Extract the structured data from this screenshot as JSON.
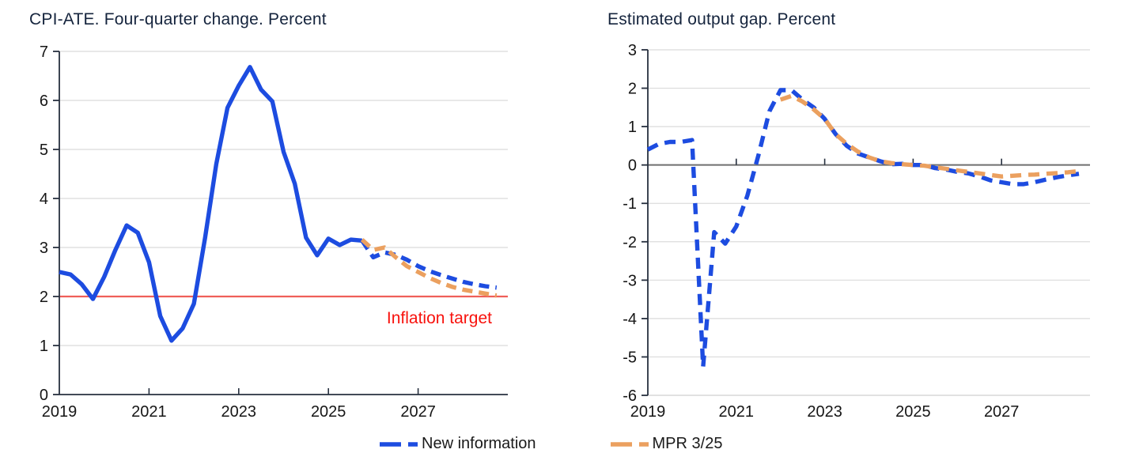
{
  "page": {
    "background": "#ffffff"
  },
  "colors": {
    "blue_line": "#1d4ce0",
    "orange_line": "#eba05f",
    "red_target_line": "#ef5f59",
    "red_label": "#f8120d",
    "title_navy": "#15243d",
    "axis_dark": "#27303f",
    "zero_line_gray": "#6f6f6f",
    "grid_gray": "#dbdbdb"
  },
  "legend": {
    "items": [
      {
        "key": "new-information",
        "label": "New information",
        "color": "#1d4ce0"
      },
      {
        "key": "mpr-3-25",
        "label": "MPR 3/25",
        "color": "#eba05f"
      }
    ]
  },
  "chart_data": [
    {
      "id": "cpi",
      "type": "line",
      "title": "CPI-ATE. Four-quarter change. Percent",
      "x_range": [
        2019,
        2029
      ],
      "y_range": [
        0,
        7
      ],
      "y_gridlines": [
        1,
        2,
        3,
        4,
        5,
        6,
        7
      ],
      "y_tick_values": [
        0,
        1,
        2,
        3,
        4,
        5,
        6,
        7
      ],
      "y_tick_labels": [
        "0",
        "1",
        "2",
        "3",
        "4",
        "5",
        "6",
        "7"
      ],
      "x_tick_values": [
        2021,
        2023,
        2025,
        2027
      ],
      "x_label_values": [
        2019,
        2021,
        2023,
        2025,
        2027
      ],
      "x_label_texts": [
        "2019",
        "2021",
        "2023",
        "2025",
        "2027"
      ],
      "grid_on": true,
      "axis_color": "#27303f",
      "grid_color": "#dbdbdb",
      "baseline": {
        "value": 0,
        "color": "#27303f",
        "width": 1.8
      },
      "reference_line": {
        "value": 2,
        "color": "#ef5f59",
        "width": 2.3
      },
      "annotation": {
        "text": "Inflation target",
        "color": "#f8120d",
        "x": 2026.3,
        "y": 1.45
      },
      "series": [
        {
          "key": "new-information-actual",
          "name": "New information (actual)",
          "color": "#1d4ce0",
          "width": 5.4,
          "dash": "",
          "x_start": 2019.0,
          "x_step": 0.25,
          "values": [
            2.5,
            2.45,
            2.25,
            1.95,
            2.4,
            2.95,
            3.45,
            3.3,
            2.7,
            1.6,
            1.1,
            1.35,
            1.85,
            3.2,
            4.7,
            5.85,
            6.3,
            6.68,
            6.22,
            5.98,
            4.95,
            4.3,
            3.2,
            2.84,
            3.18,
            3.05,
            3.16,
            3.14
          ]
        },
        {
          "key": "new-information-forecast",
          "name": "New information (forecast)",
          "color": "#1d4ce0",
          "width": 5.4,
          "dash": "13 8",
          "x_start": 2025.75,
          "x_step": 0.25,
          "values": [
            3.14,
            2.8,
            2.9,
            2.85,
            2.75,
            2.62,
            2.52,
            2.44,
            2.37,
            2.3,
            2.25,
            2.21,
            2.18
          ]
        },
        {
          "key": "mpr-3-25",
          "name": "MPR 3/25",
          "color": "#eba05f",
          "width": 5.4,
          "dash": "13 8",
          "x_start": 2025.75,
          "x_step": 0.25,
          "values": [
            3.16,
            2.95,
            3.0,
            2.8,
            2.62,
            2.5,
            2.38,
            2.28,
            2.2,
            2.14,
            2.1,
            2.06,
            2.02
          ]
        }
      ]
    },
    {
      "id": "output-gap",
      "type": "line",
      "title": "Estimated output gap. Percent",
      "x_range": [
        2019,
        2029
      ],
      "y_range": [
        -6,
        3
      ],
      "y_gridlines": [
        -5,
        -4,
        -3,
        -2,
        -1,
        1,
        2,
        3
      ],
      "y_tick_values": [
        -6,
        -5,
        -4,
        -3,
        -2,
        -1,
        0,
        1,
        2,
        3
      ],
      "y_tick_labels": [
        "-6",
        "-5",
        "-4",
        "-3",
        "-2",
        "-1",
        "0",
        "1",
        "2",
        "3"
      ],
      "x_tick_values": [
        2021,
        2023,
        2025,
        2027
      ],
      "x_label_values": [
        2019,
        2021,
        2023,
        2025,
        2027
      ],
      "x_label_texts": [
        "2019",
        "2021",
        "2023",
        "2025",
        "2027"
      ],
      "grid_on": true,
      "axis_color": "#27303f",
      "grid_color": "#dbdbdb",
      "bottom_line": {
        "value": -6,
        "color": "#cfcfcf",
        "width": 1.3
      },
      "baseline": {
        "value": 0,
        "color": "#6f6f6f",
        "width": 2
      },
      "series": [
        {
          "key": "new-information",
          "name": "New information",
          "color": "#1d4ce0",
          "width": 5.4,
          "dash": "14 9",
          "x_start": 2019.0,
          "x_step": 0.25,
          "values": [
            0.4,
            0.55,
            0.6,
            0.6,
            0.65,
            -5.25,
            -1.75,
            -2.05,
            -1.6,
            -0.8,
            0.25,
            1.4,
            1.95,
            1.95,
            1.7,
            1.5,
            1.2,
            0.8,
            0.5,
            0.3,
            0.2,
            0.1,
            0.02,
            0.03,
            0.0,
            0.0,
            -0.08,
            -0.12,
            -0.18,
            -0.22,
            -0.3,
            -0.4,
            -0.45,
            -0.5,
            -0.5,
            -0.45,
            -0.38,
            -0.32,
            -0.27,
            -0.23
          ]
        },
        {
          "key": "mpr-3-25",
          "name": "MPR 3/25",
          "color": "#eba05f",
          "width": 5.4,
          "dash": "14 9",
          "x_start": 2022.0,
          "x_step": 0.25,
          "values": [
            1.7,
            1.8,
            1.65,
            1.45,
            1.2,
            0.8,
            0.55,
            0.35,
            0.2,
            0.1,
            0.05,
            0.02,
            0.0,
            -0.02,
            -0.06,
            -0.1,
            -0.14,
            -0.18,
            -0.22,
            -0.26,
            -0.3,
            -0.28,
            -0.26,
            -0.25,
            -0.23,
            -0.21,
            -0.19,
            -0.16
          ]
        }
      ]
    }
  ]
}
